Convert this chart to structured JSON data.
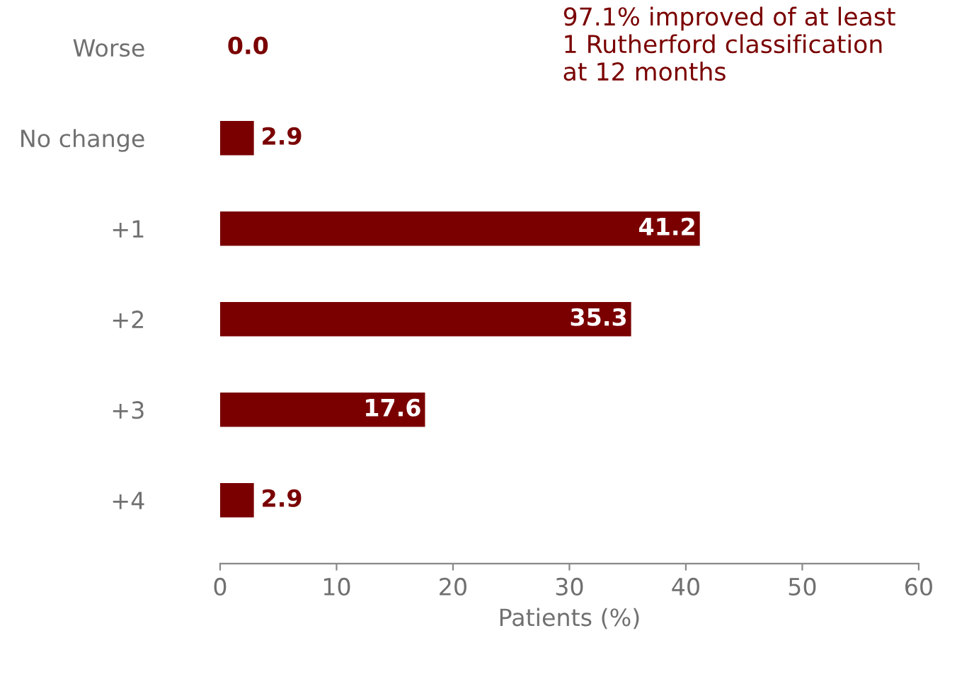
{
  "chart_data": {
    "type": "bar",
    "orientation": "horizontal",
    "xlabel": "Patients (%)",
    "categories": [
      "Worse",
      "No change",
      "+1",
      "+2",
      "+3",
      "+4"
    ],
    "values": [
      0.0,
      2.9,
      41.2,
      35.3,
      17.6,
      2.9
    ],
    "color": "#7a0000",
    "value_labels": [
      "0.0",
      "2.9",
      "41.2",
      "35.3",
      "17.6",
      "2.9"
    ],
    "xlim": [
      0,
      60
    ],
    "xticks": [
      0,
      10,
      20,
      30,
      40,
      50,
      60
    ],
    "grid": false,
    "legend": false,
    "annotations": [
      "97.1% improved of at least\n1 Rutherford classification\nat 12 months"
    ]
  }
}
